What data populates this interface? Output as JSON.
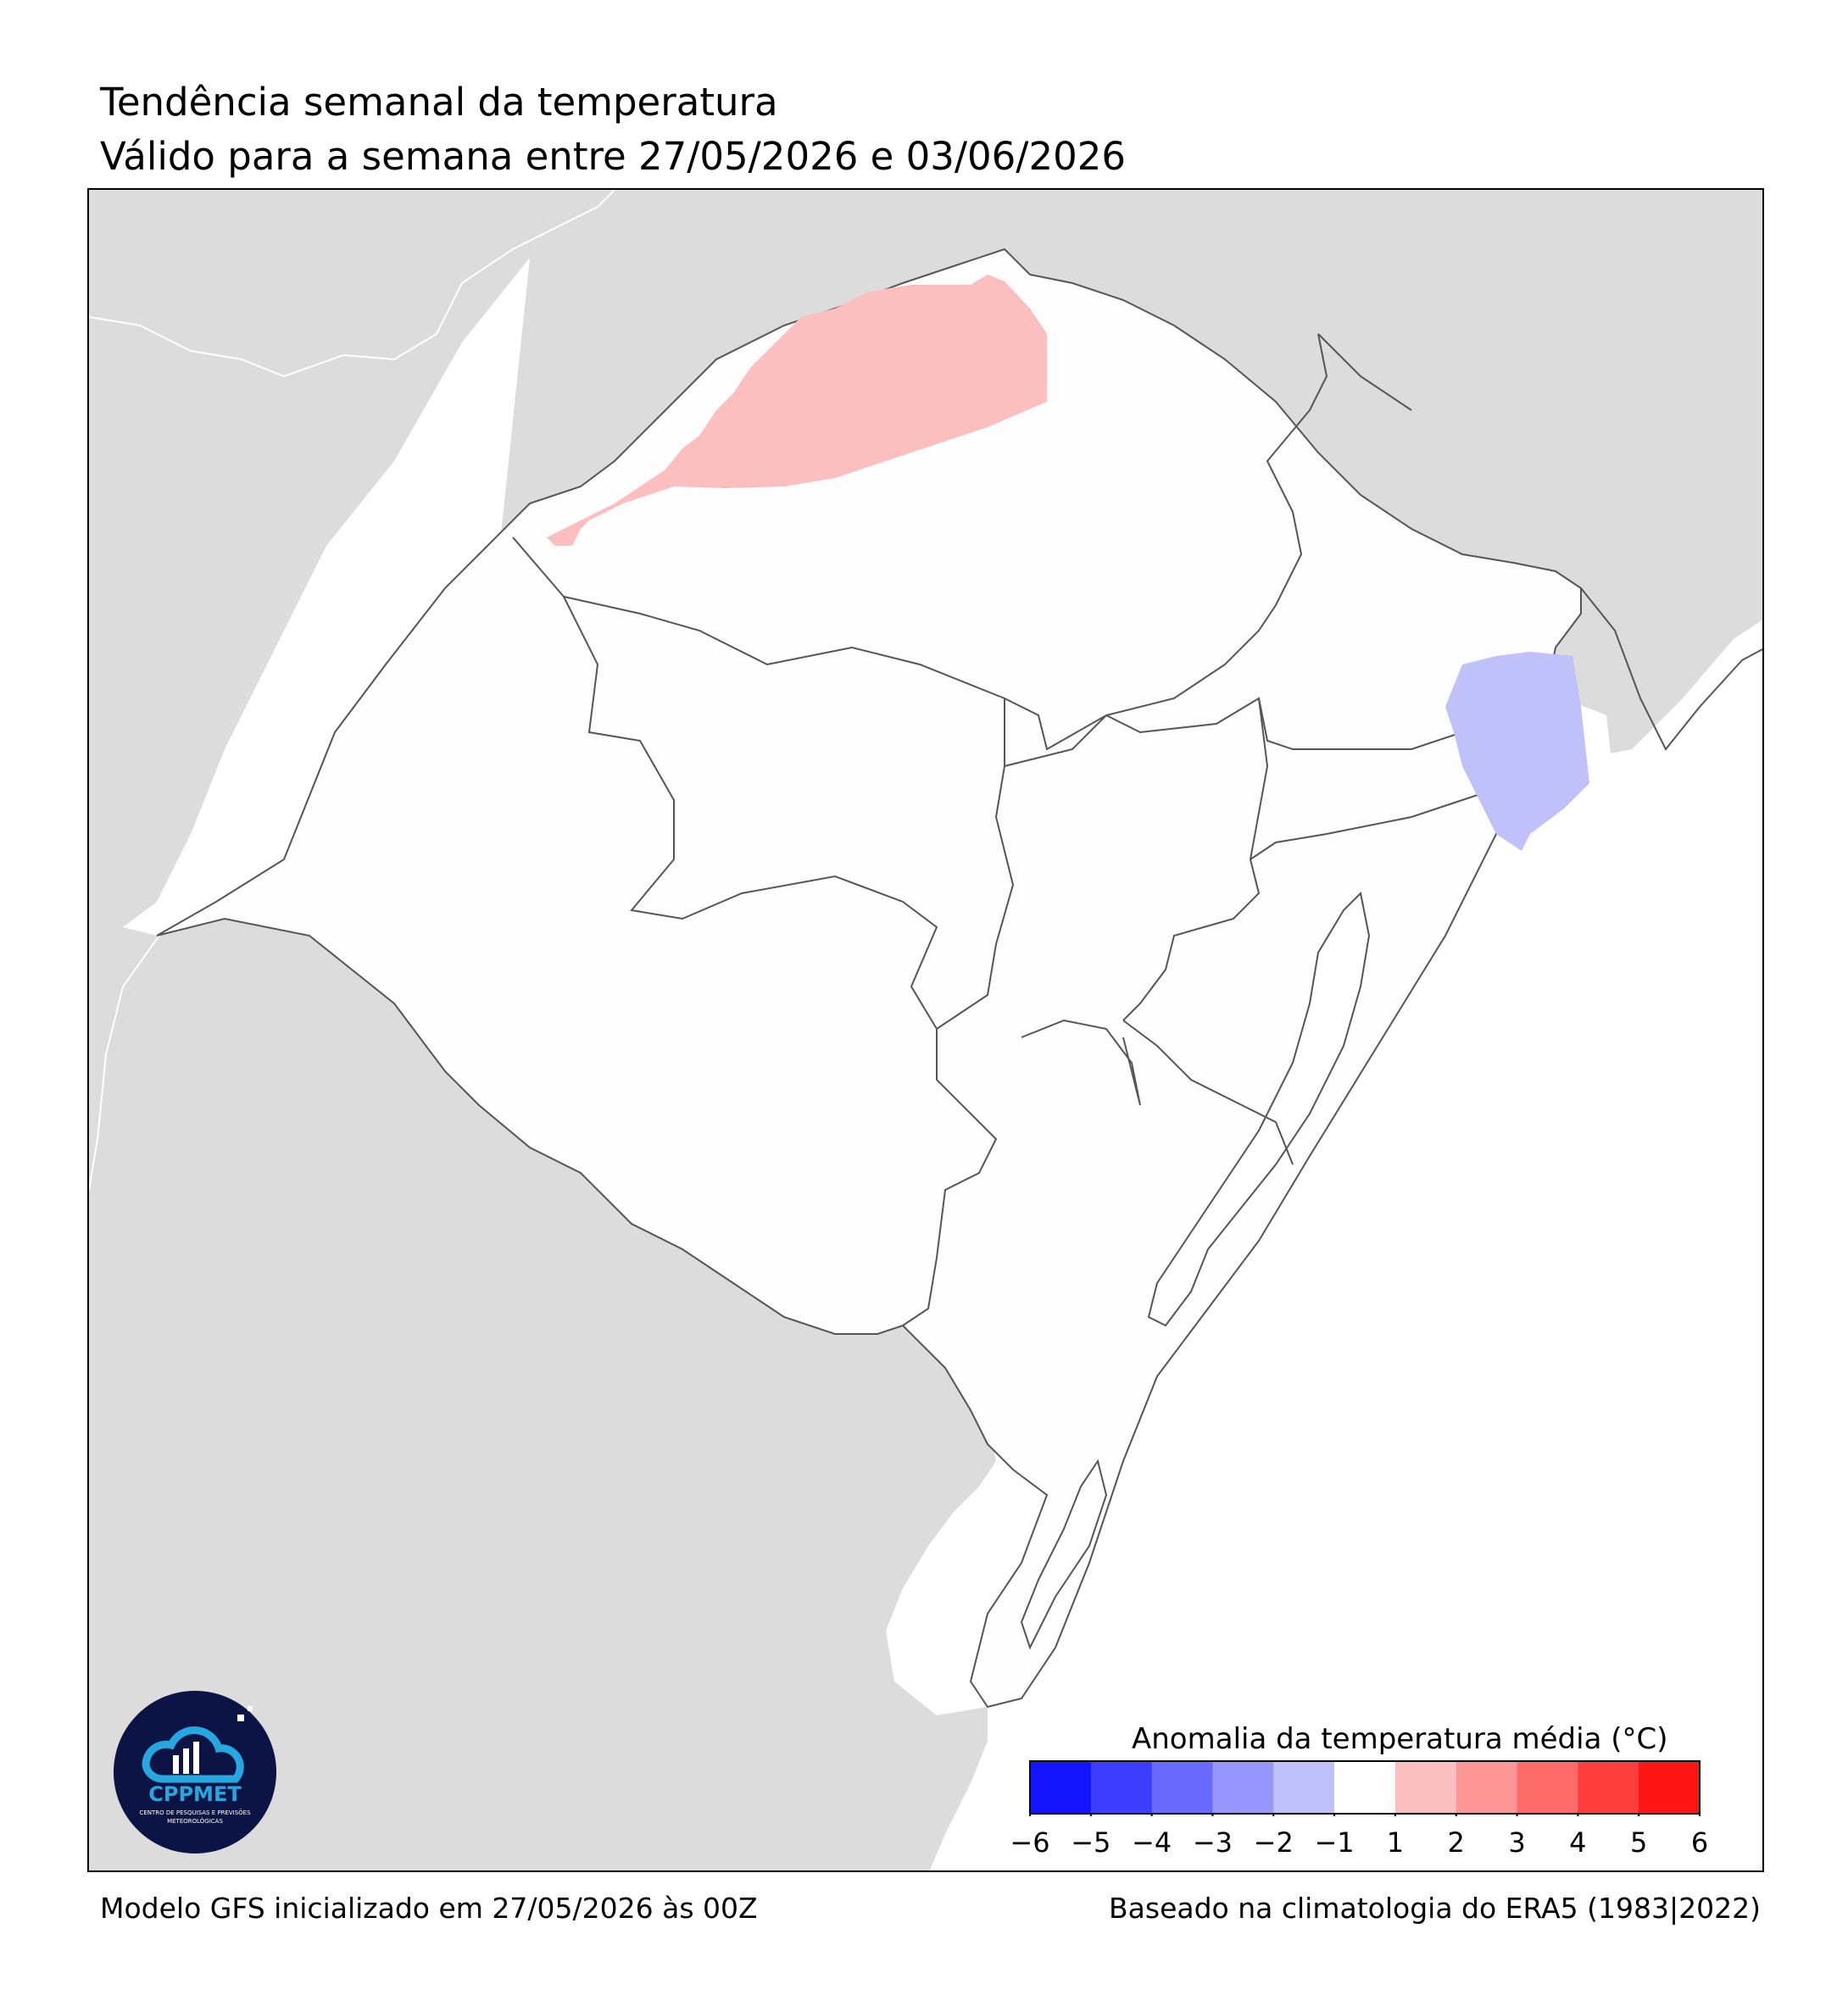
{
  "header": {
    "title": "Tendência semanal da temperatura",
    "subtitle": "Válido para a semana entre 27/05/2026 e 03/06/2026"
  },
  "map": {
    "ocean_color": "#ffffff",
    "foreign_land_color": "#dcdcdc",
    "state_fill_color": "#fdfdfd",
    "border_color": "#555555",
    "anomaly_areas": [
      {
        "label": "1 a 2 °C (positiva)",
        "color": "#fcbfbf"
      },
      {
        "label": "-2 a -1 °C (negativa)",
        "color": "#c0c0fb"
      }
    ]
  },
  "logo": {
    "name": "CPPMET",
    "caption_line1": "CENTRO DE PESQUISAS E PREVISÕES",
    "caption_line2": "METEOROLÓGICAS",
    "bg_color": "#0c1445",
    "accent_color": "#27a7df"
  },
  "legend": {
    "title": "Anomalia da temperatura média (°C)",
    "ticks": [
      "−6",
      "−5",
      "−4",
      "−3",
      "−2",
      "−1",
      "1",
      "2",
      "3",
      "4",
      "5",
      "6"
    ],
    "colors": [
      "#1414ff",
      "#3d3dff",
      "#6a6aff",
      "#9696fd",
      "#c0c0fb",
      "#ffffff",
      "#fcbfbf",
      "#fd9696",
      "#fd6a6a",
      "#fe3d3d",
      "#ff1414"
    ]
  },
  "footer": {
    "left": "Modelo GFS inicializado em 27/05/2026 às 00Z",
    "right": "Baseado na climatologia do ERA5 (1983|2022)"
  }
}
